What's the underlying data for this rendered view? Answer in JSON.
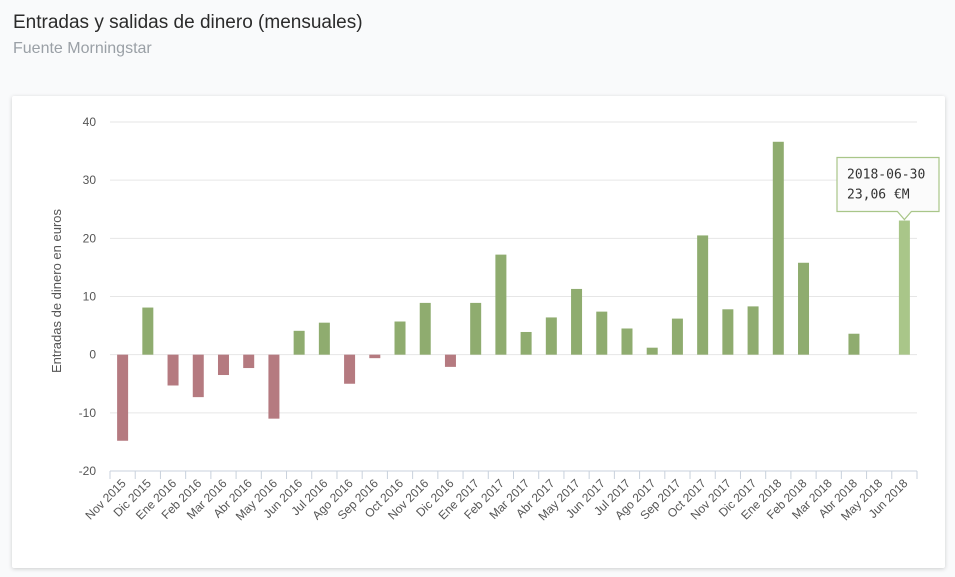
{
  "header": {
    "title": "Entradas y salidas de dinero (mensuales)",
    "subtitle": "Fuente Morningstar"
  },
  "chart_data": {
    "type": "bar",
    "title": "Entradas y salidas de dinero (mensuales)",
    "subtitle": "Fuente Morningstar",
    "xlabel": "",
    "ylabel": "Entradas de dinero en euros",
    "ylim": [
      -20,
      40
    ],
    "yticks": [
      -20,
      -10,
      0,
      10,
      20,
      30,
      40
    ],
    "grid": true,
    "categories": [
      "Nov 2015",
      "Dic 2015",
      "Ene 2016",
      "Feb 2016",
      "Mar 2016",
      "Abr 2016",
      "May 2016",
      "Jun 2016",
      "Jul 2016",
      "Ago 2016",
      "Sep 2016",
      "Oct 2016",
      "Nov 2016",
      "Dic 2016",
      "Ene 2017",
      "Feb 2017",
      "Mar 2017",
      "Abr 2017",
      "May 2017",
      "Jun 2017",
      "Jul 2017",
      "Ago 2017",
      "Sep 2017",
      "Oct 2017",
      "Nov 2017",
      "Dic 2017",
      "Ene 2018",
      "Feb 2018",
      "Mar 2018",
      "Abr 2018",
      "May 2018",
      "Jun 2018"
    ],
    "values": [
      -14.8,
      8.1,
      -5.3,
      -7.3,
      -3.5,
      -2.3,
      -11.0,
      4.1,
      5.5,
      -5.0,
      -0.6,
      5.7,
      8.9,
      -2.1,
      8.9,
      17.2,
      3.9,
      6.4,
      11.3,
      7.4,
      4.5,
      1.2,
      6.2,
      20.5,
      7.8,
      8.3,
      36.6,
      15.8,
      0,
      3.6,
      0,
      23.06
    ],
    "colors": {
      "positive": "#8fac6f",
      "negative": "#b57a80",
      "highlight": "#a9c689"
    },
    "highlight_index": 31,
    "tooltip": {
      "date": "2018-06-30",
      "value": "23,06 €M"
    }
  }
}
